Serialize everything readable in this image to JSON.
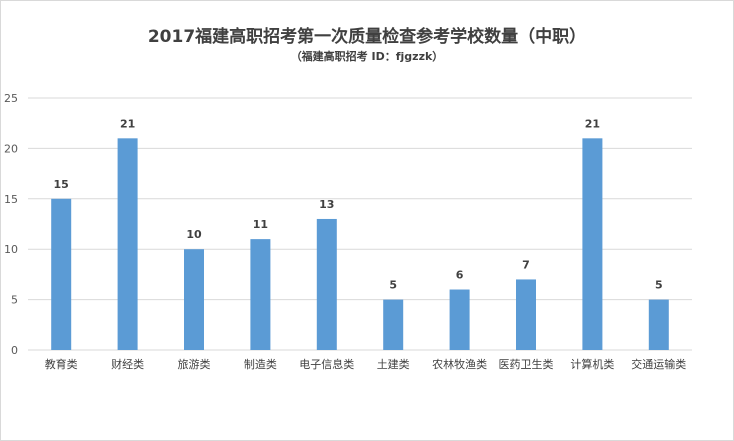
{
  "chart_data": {
    "type": "bar",
    "title": "2017福建高职招考第一次质量检查参考学校数量（中职）",
    "subtitle": "（福建高职招考 ID：fjgzzk）",
    "categories": [
      "教育类",
      "财经类",
      "旅游类",
      "制造类",
      "电子信息类",
      "土建类",
      "农林牧渔类",
      "医药卫生类",
      "计算机类",
      "交通运输类"
    ],
    "values": [
      15,
      21,
      10,
      11,
      13,
      5,
      6,
      7,
      21,
      5
    ],
    "ylim": [
      0,
      25
    ],
    "yticks": [
      0,
      5,
      10,
      15,
      20,
      25
    ],
    "grid": true,
    "legend": "none",
    "bar_color": "#5b9bd5",
    "grid_color": "#d9d9d9"
  }
}
